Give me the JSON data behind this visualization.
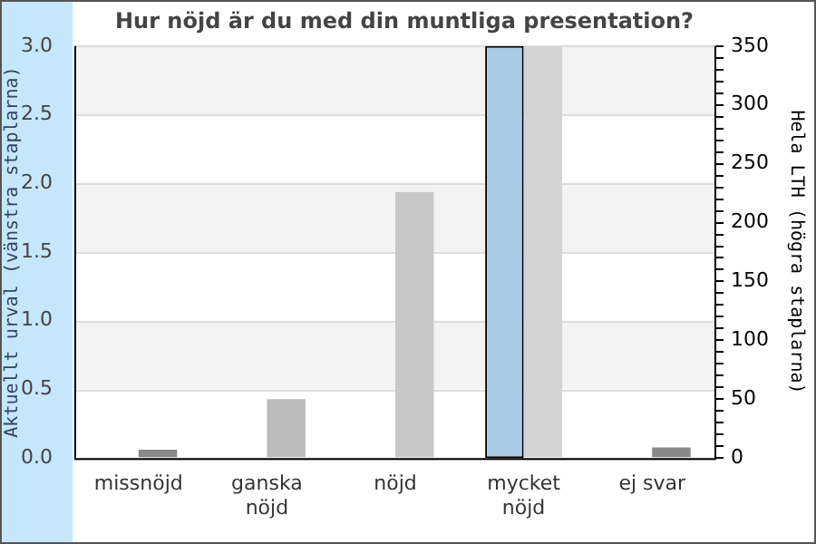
{
  "chart_data": {
    "type": "bar",
    "title": "Hur nöjd är du med din muntliga presentation?",
    "categories": [
      "missnöjd",
      "ganska nöjd",
      "nöjd",
      "mycket nöjd",
      "ej svar"
    ],
    "series": [
      {
        "color": "#aacbe6",
        "values": [
          0,
          0,
          0,
          3,
          0
        ]
      },
      {
        "colors": [
          "#888888",
          "#bbbbbb",
          "#c8c8c8",
          "#d4d4d4",
          "#888888"
        ],
        "values": [
          7,
          50,
          226,
          350,
          9
        ],
        "axis": "y2"
      }
    ],
    "ylabel": "Aktuellt urval (vänstra staplarna)",
    "y2label": "Hela LTH (högra staplarna)",
    "ylim": [
      0,
      3
    ],
    "yticks": [
      {
        "value": 0,
        "label": "0.0"
      },
      {
        "value": 0.5,
        "label": "0.5"
      },
      {
        "value": 1,
        "label": "1.0"
      },
      {
        "value": 1.5,
        "label": "1.5"
      },
      {
        "value": 2,
        "label": "2.0"
      },
      {
        "value": 2.5,
        "label": "2.5"
      },
      {
        "value": 3,
        "label": "3.0"
      }
    ],
    "y2lim": [
      0,
      350
    ],
    "y2ticks": [
      0,
      {
        "value": 10,
        "label": null
      },
      {
        "value": 20,
        "label": null
      },
      {
        "value": 30,
        "label": null
      },
      {
        "value": 40,
        "label": null
      },
      50,
      {
        "value": 60,
        "label": null
      },
      {
        "value": 70,
        "label": null
      },
      {
        "value": 80,
        "label": null
      },
      {
        "value": 90,
        "label": null
      },
      100,
      {
        "value": 110,
        "label": null
      },
      {
        "value": 120,
        "label": null
      },
      {
        "value": 130,
        "label": null
      },
      {
        "value": 140,
        "label": null
      },
      150,
      {
        "value": 160,
        "label": null
      },
      {
        "value": 170,
        "label": null
      },
      {
        "value": 180,
        "label": null
      },
      {
        "value": 190,
        "label": null
      },
      200,
      {
        "value": 210,
        "label": null
      },
      {
        "value": 220,
        "label": null
      },
      {
        "value": 230,
        "label": null
      },
      {
        "value": 240,
        "label": null
      },
      250,
      {
        "value": 260,
        "label": null
      },
      {
        "value": 270,
        "label": null
      },
      {
        "value": 280,
        "label": null
      },
      {
        "value": 290,
        "label": null
      },
      300,
      {
        "value": 310,
        "label": null
      },
      {
        "value": 320,
        "label": null
      },
      {
        "value": 330,
        "label": null
      },
      {
        "value": 340,
        "label": null
      },
      350
    ],
    "grid": "y",
    "legend": false
  }
}
